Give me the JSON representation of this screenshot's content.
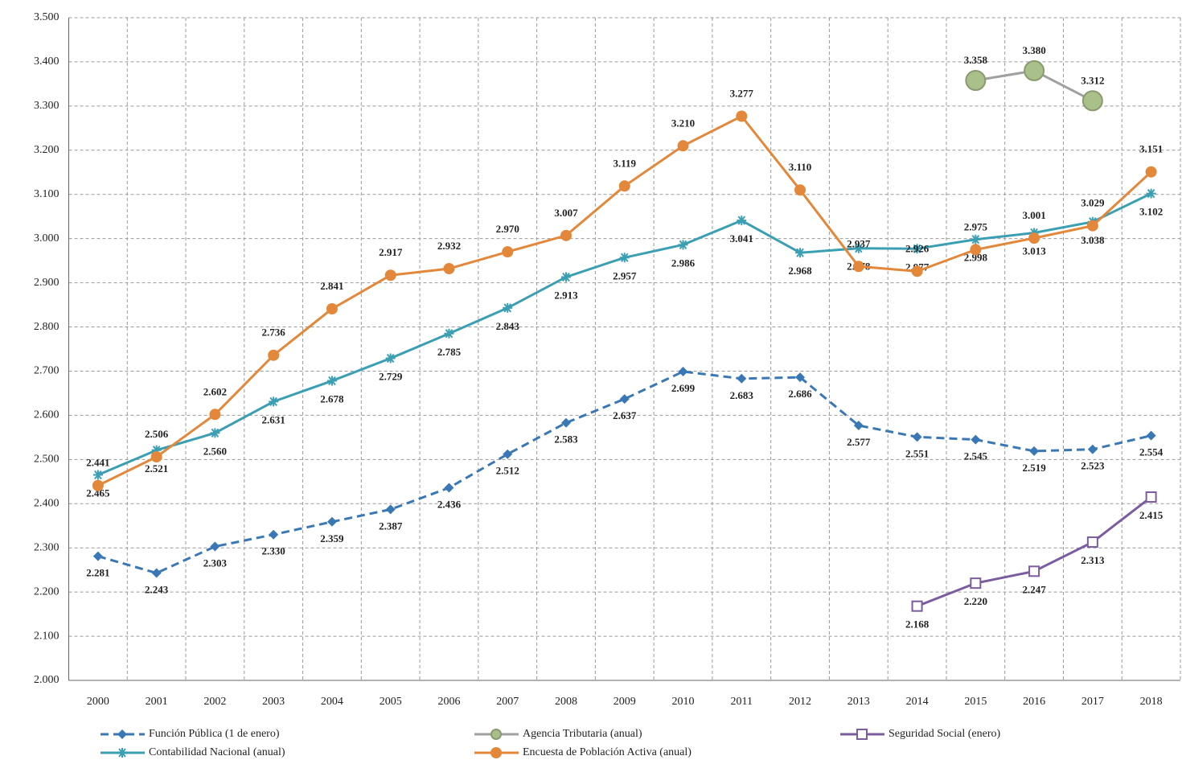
{
  "chart_data": {
    "type": "line",
    "categories": [
      "2000",
      "2001",
      "2002",
      "2003",
      "2004",
      "2005",
      "2006",
      "2007",
      "2008",
      "2009",
      "2010",
      "2011",
      "2012",
      "2013",
      "2014",
      "2015",
      "2016",
      "2017",
      "2018"
    ],
    "ylim": [
      2000,
      3500
    ],
    "yticks": [
      {
        "value": 2000,
        "label": "2.000"
      },
      {
        "value": 2100,
        "label": "2.100"
      },
      {
        "value": 2200,
        "label": "2.200"
      },
      {
        "value": 2300,
        "label": "2.300"
      },
      {
        "value": 2400,
        "label": "2.400"
      },
      {
        "value": 2500,
        "label": "2.500"
      },
      {
        "value": 2600,
        "label": "2.600"
      },
      {
        "value": 2700,
        "label": "2.700"
      },
      {
        "value": 2800,
        "label": "2.800"
      },
      {
        "value": 2900,
        "label": "2.900"
      },
      {
        "value": 3000,
        "label": "3.000"
      },
      {
        "value": 3100,
        "label": "3.100"
      },
      {
        "value": 3200,
        "label": "3.200"
      },
      {
        "value": 3300,
        "label": "3.300"
      },
      {
        "value": 3400,
        "label": "3.400"
      },
      {
        "value": 3500,
        "label": "3.500"
      }
    ],
    "grid": true,
    "series": [
      {
        "name": "Función Pública (1 de enero)",
        "color": "#3a78b5",
        "dash": true,
        "marker": "diamond",
        "values": [
          2281,
          2243,
          2303,
          2330,
          2359,
          2387,
          2436,
          2512,
          2583,
          2637,
          2699,
          2683,
          2686,
          2577,
          2551,
          2545,
          2519,
          2523,
          2554
        ],
        "value_labels": [
          "2.281",
          "2.243",
          "2.303",
          "2.330",
          "2.359",
          "2.387",
          "2.436",
          "2.512",
          "2.583",
          "2.637",
          "2.699",
          "2.683",
          "2.686",
          "2.577",
          "2.551",
          "2.545",
          "2.519",
          "2.523",
          "2.554"
        ]
      },
      {
        "name": "Agencia Tributaria (anual)",
        "color": "#a0a0a0",
        "marker": "circle-green",
        "values": [
          null,
          null,
          null,
          null,
          null,
          null,
          null,
          null,
          null,
          null,
          null,
          null,
          null,
          null,
          null,
          3358,
          3380,
          3312,
          null
        ],
        "value_labels": [
          null,
          null,
          null,
          null,
          null,
          null,
          null,
          null,
          null,
          null,
          null,
          null,
          null,
          null,
          null,
          "3.358",
          "3.380",
          "3.312",
          null
        ]
      },
      {
        "name": "Seguridad Social (enero)",
        "color": "#7b5c9e",
        "marker": "square",
        "values": [
          null,
          null,
          null,
          null,
          null,
          null,
          null,
          null,
          null,
          null,
          null,
          null,
          null,
          null,
          2168,
          2220,
          2247,
          2313,
          2415
        ],
        "value_labels": [
          null,
          null,
          null,
          null,
          null,
          null,
          null,
          null,
          null,
          null,
          null,
          null,
          null,
          null,
          "2.168",
          "2.220",
          "2.247",
          "2.313",
          "2.415"
        ]
      },
      {
        "name": "Contabilidad Nacional (anual)",
        "color": "#3b9fb3",
        "marker": "star",
        "values": [
          2465,
          2521,
          2560,
          2631,
          2678,
          2729,
          2785,
          2843,
          2913,
          2957,
          2986,
          3041,
          2968,
          2978,
          2977,
          2998,
          3013,
          3038,
          3102
        ],
        "value_labels": [
          "2.465",
          "2.521",
          "2.560",
          "2.631",
          "2.678",
          "2.729",
          "2.785",
          "2.843",
          "2.913",
          "2.957",
          "2.986",
          "3.041",
          "2.968",
          "2.978",
          "2.977",
          "2.998",
          "3.013",
          "3.038",
          "3.102"
        ]
      },
      {
        "name": "Encuesta de Población Activa (anual)",
        "color": "#e3873a",
        "marker": "circle",
        "values": [
          2441,
          2506,
          2602,
          2736,
          2841,
          2917,
          2932,
          2970,
          3007,
          3119,
          3210,
          3277,
          3110,
          2937,
          2926,
          2975,
          3001,
          3029,
          3151
        ],
        "value_labels": [
          "2.441",
          "2.506",
          "2.602",
          "2.736",
          "2.841",
          "2.917",
          "2.932",
          "2.970",
          "3.007",
          "3.119",
          "3.210",
          "3.277",
          "3.110",
          "2.937",
          "2.926",
          "2.975",
          "3.001",
          "3.029",
          "3.151"
        ]
      }
    ]
  }
}
